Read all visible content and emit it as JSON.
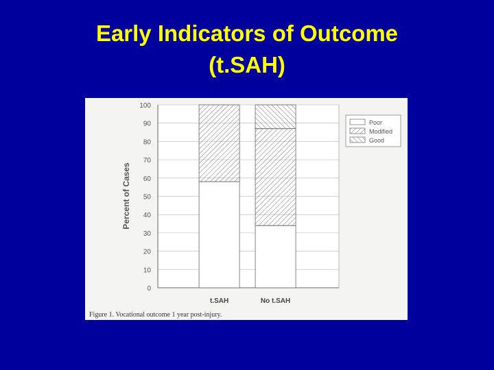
{
  "slide": {
    "title_line1": "Early Indicators of Outcome",
    "title_line2": "(t.SAH)",
    "title_color": "#ffff00",
    "background_color": "#00009c"
  },
  "figure": {
    "caption": "Figure 1.  Vocational outcome 1 year post-injury."
  },
  "chart_data": {
    "type": "bar",
    "stacked": true,
    "categories": [
      "t.SAH",
      "No t.SAH"
    ],
    "series": [
      {
        "name": "Poor",
        "values": [
          58,
          34
        ],
        "pattern": "none"
      },
      {
        "name": "Modified",
        "values": [
          42,
          53
        ],
        "pattern": "forward-hatch"
      },
      {
        "name": "Good",
        "values": [
          0,
          13
        ],
        "pattern": "back-hatch"
      }
    ],
    "title": "",
    "xlabel": "",
    "ylabel": "Percent of Cases",
    "ylim": [
      0,
      100
    ],
    "yticks": [
      0,
      10,
      20,
      30,
      40,
      50,
      60,
      70,
      80,
      90,
      100
    ],
    "grid": true,
    "legend": "top-right"
  }
}
